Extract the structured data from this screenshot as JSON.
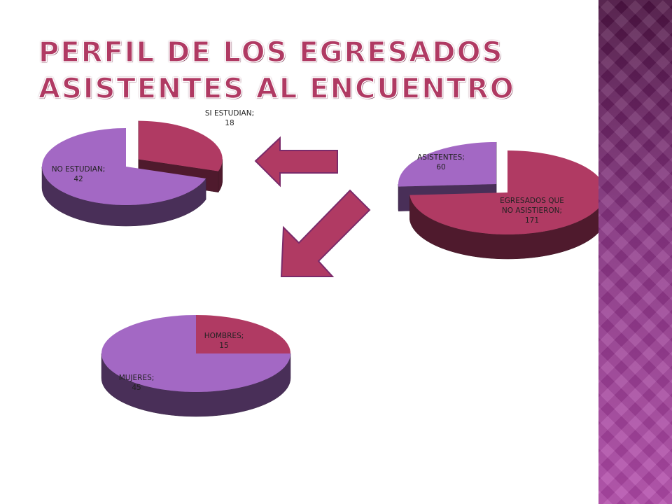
{
  "title": [
    "PERFIL DE LOS EGRESADOS",
    "ASISTENTES AL ENCUENTRO"
  ],
  "chart_data": [
    {
      "type": "pie",
      "categories": [
        "SI ESTUDIAN",
        "NO ESTUDIAN"
      ],
      "values": [
        18,
        42
      ],
      "colors": [
        "#b03a63",
        "#a368c4"
      ]
    },
    {
      "type": "pie",
      "categories": [
        "ASISTENTES",
        "EGRESADOS QUE NO ASISTIERON"
      ],
      "values": [
        60,
        171
      ],
      "colors": [
        "#a368c4",
        "#b03a63"
      ]
    },
    {
      "type": "pie",
      "categories": [
        "HOMBRES",
        "MUJERES"
      ],
      "values": [
        15,
        45
      ],
      "colors": [
        "#b03a63",
        "#a368c4"
      ]
    }
  ]
}
